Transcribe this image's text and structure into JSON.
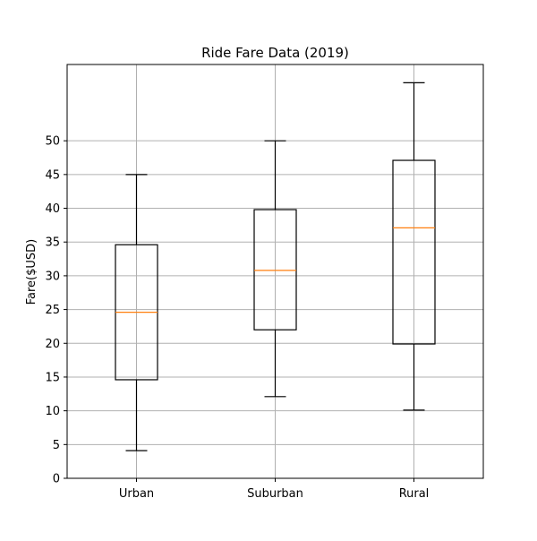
{
  "chart_data": {
    "type": "box",
    "title": "Ride Fare Data (2019)",
    "xlabel": "",
    "ylabel": "Fare($USD)",
    "ylim": [
      0,
      61.3
    ],
    "yticks": [
      0,
      5,
      10,
      15,
      20,
      25,
      30,
      35,
      40,
      45,
      50
    ],
    "grid": true,
    "categories": [
      "Urban",
      "Suburban",
      "Rural"
    ],
    "boxes": [
      {
        "category": "Urban",
        "whislo": 4.1,
        "q1": 14.6,
        "med": 24.6,
        "q3": 34.6,
        "whishi": 45.0
      },
      {
        "category": "Suburban",
        "whislo": 12.1,
        "q1": 22.0,
        "med": 30.8,
        "q3": 39.8,
        "whishi": 50.0
      },
      {
        "category": "Rural",
        "whislo": 10.1,
        "q1": 19.9,
        "med": 37.1,
        "q3": 47.1,
        "whishi": 58.6
      }
    ],
    "colors": {
      "box": "#000000",
      "median": "#ff7f0e",
      "grid": "#b0b0b0"
    }
  }
}
